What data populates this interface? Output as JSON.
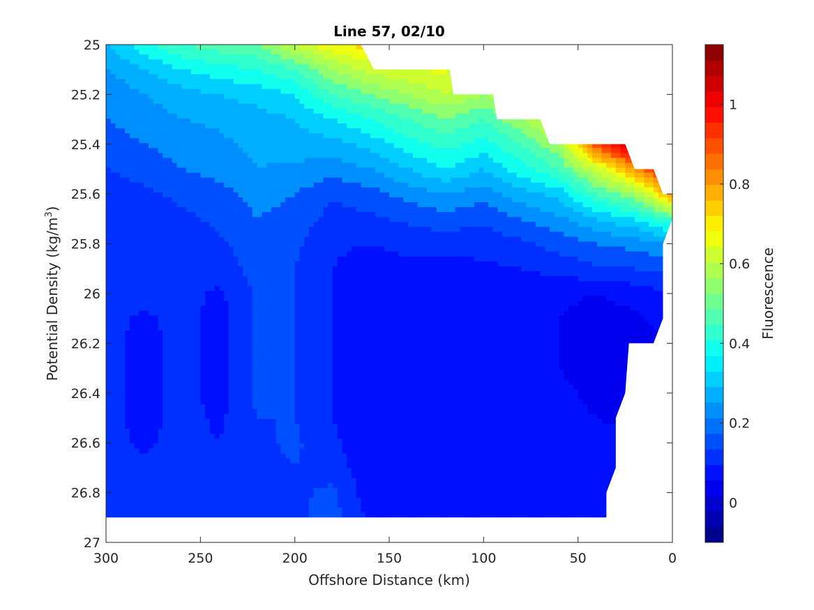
{
  "chart_data": {
    "type": "heatmap",
    "subtype": "filled-contour",
    "title": "Line 57, 02/10",
    "xlabel": "Offshore Distance (km)",
    "ylabel_main": "Potential Density (kg/m",
    "ylabel_sup": "3",
    "ylabel_close": ")",
    "colorbar_label": "Fluorescence",
    "x_reversed": true,
    "y_reversed": true,
    "xlim": [
      0,
      300
    ],
    "ylim": [
      25,
      27
    ],
    "x_ticks": [
      300,
      250,
      200,
      150,
      100,
      50,
      0
    ],
    "x_tick_labels": [
      "300",
      "250",
      "200",
      "150",
      "100",
      "50",
      "0"
    ],
    "y_ticks": [
      25,
      25.2,
      25.4,
      25.6,
      25.8,
      26,
      26.2,
      26.4,
      26.6,
      26.8,
      27
    ],
    "y_tick_labels": [
      "25",
      "25.2",
      "25.4",
      "25.6",
      "25.8",
      "26",
      "26.2",
      "26.4",
      "26.6",
      "26.8",
      "27"
    ],
    "clim": [
      -0.1,
      1.15
    ],
    "colorbar_ticks": [
      0,
      0.2,
      0.4,
      0.6,
      0.8,
      1
    ],
    "colorbar_tick_labels": [
      "0",
      "0.2",
      "0.4",
      "0.6",
      "0.8",
      "1"
    ],
    "contour_levels": [
      -0.1,
      -0.05,
      0,
      0.05,
      0.1,
      0.15,
      0.2,
      0.25,
      0.3,
      0.35,
      0.4,
      0.45,
      0.5,
      0.55,
      0.6,
      0.65,
      0.7,
      0.75,
      0.8,
      0.85,
      0.9,
      0.95,
      1.0,
      1.05,
      1.1
    ],
    "colormap": [
      "#00008f",
      "#0000af",
      "#0000cf",
      "#0000ef",
      "#0010ff",
      "#0030ff",
      "#0050ff",
      "#0070ff",
      "#008fff",
      "#00afff",
      "#00cfff",
      "#00efff",
      "#10ffef",
      "#30ffcf",
      "#50ffaf",
      "#70ff8f",
      "#8fff70",
      "#afff50",
      "#cfff30",
      "#efff10",
      "#ffef00",
      "#ffcf00",
      "#ffaf00",
      "#ff8f00",
      "#ff7000",
      "#ff5000",
      "#ff3000",
      "#ff1000",
      "#ef0000",
      "#cf0000",
      "#af0000",
      "#8f0000"
    ],
    "data_top_boundary": [
      [
        300,
        25.0
      ],
      [
        165,
        25.0
      ],
      [
        158,
        25.1
      ],
      [
        118,
        25.1
      ],
      [
        116,
        25.2
      ],
      [
        95,
        25.2
      ],
      [
        93,
        25.3
      ],
      [
        70,
        25.3
      ],
      [
        65,
        25.4
      ],
      [
        25,
        25.4
      ],
      [
        20,
        25.5
      ],
      [
        10,
        25.5
      ],
      [
        5,
        25.6
      ],
      [
        0,
        25.6
      ]
    ],
    "data_bottom_boundary": [
      [
        300,
        26.9
      ],
      [
        35,
        26.9
      ],
      [
        35,
        26.8
      ],
      [
        30,
        26.7
      ],
      [
        30,
        26.5
      ],
      [
        25,
        26.4
      ],
      [
        23,
        26.2
      ],
      [
        10,
        26.2
      ],
      [
        5,
        26.1
      ],
      [
        5,
        25.8
      ],
      [
        0,
        25.7
      ]
    ],
    "field_grid": {
      "x": [
        300,
        280,
        260,
        240,
        220,
        200,
        180,
        160,
        140,
        120,
        100,
        80,
        60,
        40,
        20,
        0
      ],
      "y": [
        25.0,
        25.1,
        25.2,
        25.3,
        25.4,
        25.5,
        25.6,
        25.7,
        25.8,
        25.9,
        26.0,
        26.1,
        26.2,
        26.3,
        26.4,
        26.5,
        26.6,
        26.7,
        26.8,
        26.9
      ],
      "z": [
        [
          0.3,
          0.38,
          0.45,
          0.48,
          0.5,
          0.6,
          0.7,
          0.72,
          0.72,
          0.7,
          0.62,
          0.7,
          0.75,
          0.8,
          0.9,
          1.0
        ],
        [
          0.25,
          0.3,
          0.35,
          0.38,
          0.4,
          0.45,
          0.55,
          0.62,
          0.65,
          0.66,
          0.58,
          0.66,
          0.72,
          0.8,
          0.9,
          1.0
        ],
        [
          0.2,
          0.25,
          0.28,
          0.3,
          0.32,
          0.35,
          0.45,
          0.5,
          0.55,
          0.6,
          0.55,
          0.62,
          0.7,
          0.8,
          0.9,
          1.0
        ],
        [
          0.2,
          0.22,
          0.25,
          0.26,
          0.28,
          0.3,
          0.35,
          0.4,
          0.45,
          0.5,
          0.45,
          0.55,
          0.65,
          0.75,
          0.9,
          1.0
        ],
        [
          0.18,
          0.2,
          0.22,
          0.24,
          0.26,
          0.28,
          0.28,
          0.32,
          0.38,
          0.42,
          0.38,
          0.45,
          0.55,
          0.9,
          1.1,
          1.1
        ],
        [
          0.15,
          0.17,
          0.2,
          0.22,
          0.25,
          0.24,
          0.22,
          0.25,
          0.3,
          0.35,
          0.3,
          0.38,
          0.45,
          0.62,
          0.8,
          1.0
        ],
        [
          0.12,
          0.14,
          0.16,
          0.18,
          0.22,
          0.2,
          0.16,
          0.18,
          0.22,
          0.25,
          0.22,
          0.28,
          0.32,
          0.45,
          0.55,
          0.8
        ],
        [
          0.12,
          0.12,
          0.14,
          0.16,
          0.2,
          0.18,
          0.13,
          0.14,
          0.16,
          0.18,
          0.16,
          0.2,
          0.24,
          0.3,
          0.35,
          0.45
        ],
        [
          0.12,
          0.12,
          0.12,
          0.14,
          0.18,
          0.16,
          0.11,
          0.1,
          0.12,
          0.12,
          0.12,
          0.14,
          0.17,
          0.2,
          0.22,
          0.25
        ],
        [
          0.12,
          0.12,
          0.12,
          0.12,
          0.17,
          0.15,
          0.1,
          0.07,
          0.08,
          0.08,
          0.09,
          0.1,
          0.12,
          0.14,
          0.15,
          0.16
        ],
        [
          0.12,
          0.12,
          0.12,
          0.09,
          0.16,
          0.15,
          0.1,
          0.06,
          0.07,
          0.07,
          0.07,
          0.07,
          0.06,
          0.05,
          0.07,
          0.1
        ],
        [
          0.12,
          0.09,
          0.12,
          0.08,
          0.16,
          0.15,
          0.1,
          0.06,
          0.06,
          0.06,
          0.06,
          0.06,
          0.05,
          0.03,
          0.04,
          0.08
        ],
        [
          0.12,
          0.08,
          0.12,
          0.08,
          0.16,
          0.15,
          0.1,
          0.06,
          0.06,
          0.06,
          0.06,
          0.06,
          0.05,
          0.02,
          0.01,
          0.06
        ],
        [
          0.12,
          0.08,
          0.12,
          0.08,
          0.16,
          0.15,
          0.1,
          0.06,
          0.06,
          0.06,
          0.06,
          0.06,
          0.05,
          0.03,
          0.01,
          0.06
        ],
        [
          0.12,
          0.08,
          0.12,
          0.08,
          0.16,
          0.15,
          0.1,
          0.06,
          0.06,
          0.06,
          0.06,
          0.06,
          0.06,
          0.04,
          0.02,
          0.06
        ],
        [
          0.12,
          0.08,
          0.12,
          0.09,
          0.15,
          0.15,
          0.1,
          0.06,
          0.06,
          0.06,
          0.06,
          0.06,
          0.06,
          0.05,
          0.04,
          0.06
        ],
        [
          0.12,
          0.09,
          0.12,
          0.1,
          0.14,
          0.16,
          0.11,
          0.06,
          0.06,
          0.06,
          0.06,
          0.06,
          0.06,
          0.06,
          0.06,
          0.06
        ],
        [
          0.12,
          0.11,
          0.12,
          0.11,
          0.13,
          0.15,
          0.13,
          0.06,
          0.06,
          0.06,
          0.06,
          0.06,
          0.06,
          0.06,
          0.06,
          0.06
        ],
        [
          0.12,
          0.12,
          0.12,
          0.12,
          0.11,
          0.14,
          0.16,
          0.07,
          0.07,
          0.06,
          0.07,
          0.06,
          0.06,
          0.06,
          0.06,
          0.06
        ],
        [
          0.12,
          0.12,
          0.12,
          0.12,
          0.1,
          0.14,
          0.17,
          0.09,
          0.1,
          0.05,
          0.09,
          0.06,
          0.06,
          0.06,
          0.06,
          0.06
        ]
      ]
    },
    "grid": false
  }
}
